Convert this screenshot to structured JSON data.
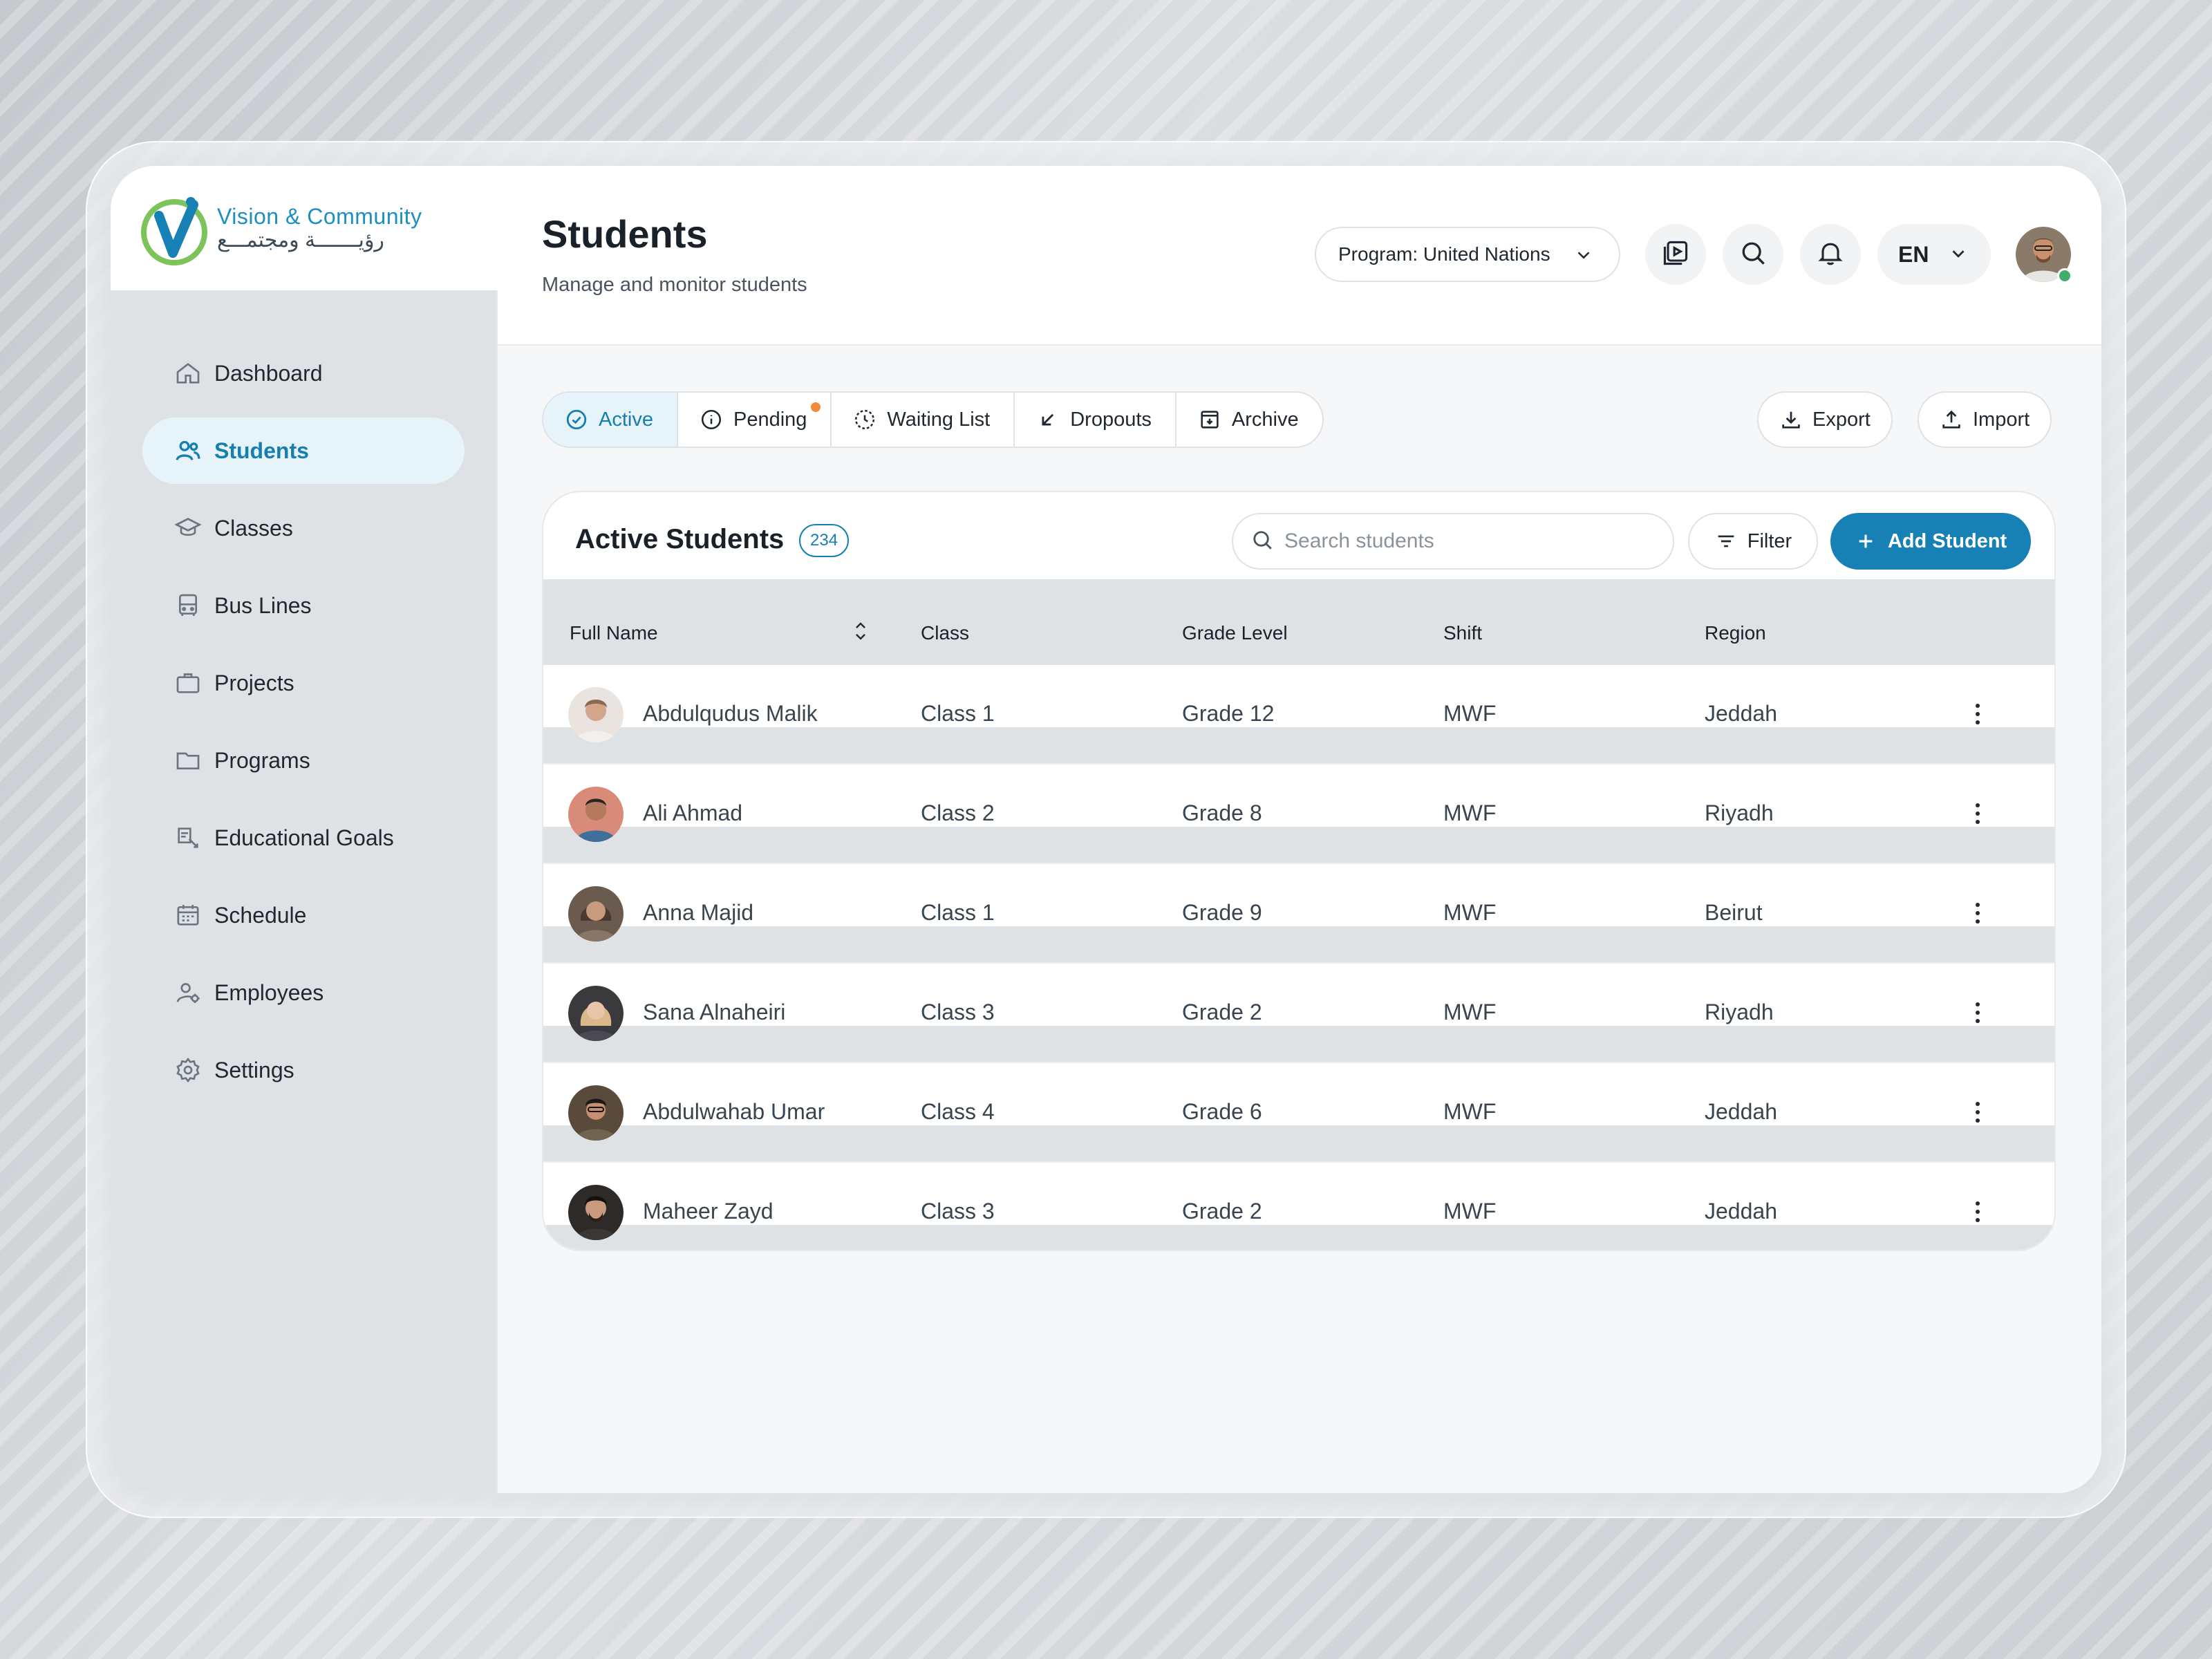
{
  "brand": {
    "name_en": "Vision & Community",
    "name_ar": "رؤيـــــــة ومجتمـــع",
    "accent": "#1780b5",
    "accent_soft": "#e6f4f9",
    "logo_green": "#7cc35a"
  },
  "sidebar": {
    "items": [
      {
        "label": "Dashboard",
        "icon": "home-icon",
        "active": false
      },
      {
        "label": "Students",
        "icon": "users-icon",
        "active": true
      },
      {
        "label": "Classes",
        "icon": "graduation-cap-icon",
        "active": false
      },
      {
        "label": "Bus Lines",
        "icon": "bus-icon",
        "active": false
      },
      {
        "label": "Projects",
        "icon": "briefcase-icon",
        "active": false
      },
      {
        "label": "Programs",
        "icon": "folder-icon",
        "active": false
      },
      {
        "label": "Educational Goals",
        "icon": "goal-icon",
        "active": false
      },
      {
        "label": "Schedule",
        "icon": "calendar-icon",
        "active": false
      },
      {
        "label": "Employees",
        "icon": "employee-icon",
        "active": false
      },
      {
        "label": "Settings",
        "icon": "gear-icon",
        "active": false
      }
    ]
  },
  "header": {
    "title": "Students",
    "subtitle": "Manage and monitor students",
    "program_select": "Program: United Nations",
    "language": "EN"
  },
  "tabs": [
    {
      "label": "Active",
      "icon": "check-circle-icon",
      "active": true
    },
    {
      "label": "Pending",
      "icon": "info-icon",
      "active": false,
      "notification": true
    },
    {
      "label": "Waiting List",
      "icon": "clock-dashed-icon",
      "active": false
    },
    {
      "label": "Dropouts",
      "icon": "arrow-down-left-icon",
      "active": false
    },
    {
      "label": "Archive",
      "icon": "archive-icon",
      "active": false
    }
  ],
  "actions": {
    "export_label": "Export",
    "import_label": "Import"
  },
  "table_card": {
    "title": "Active Students",
    "count": "234",
    "search_placeholder": "Search students",
    "filter_label": "Filter",
    "add_label": "Add Student",
    "columns": [
      "Full Name",
      "Class",
      "Grade Level",
      "Shift",
      "Region"
    ],
    "rows": [
      {
        "name": "Abdulqudus Malik",
        "class": "Class 1",
        "grade": "Grade 12",
        "shift": "MWF",
        "region": "Jeddah",
        "avatar_color": "#c9b8aa"
      },
      {
        "name": "Ali Ahmad",
        "class": "Class 2",
        "grade": "Grade 8",
        "shift": "MWF",
        "region": "Riyadh",
        "avatar_color": "#d98b7a"
      },
      {
        "name": "Anna Majid",
        "class": "Class 1",
        "grade": "Grade 9",
        "shift": "MWF",
        "region": "Beirut",
        "avatar_color": "#6b5a4e"
      },
      {
        "name": "Sana Alnaheiri",
        "class": "Class 3",
        "grade": "Grade 2",
        "shift": "MWF",
        "region": "Riyadh",
        "avatar_color": "#b89a78"
      },
      {
        "name": "Abdulwahab Umar",
        "class": "Class 4",
        "grade": "Grade 6",
        "shift": "MWF",
        "region": "Jeddah",
        "avatar_color": "#5a4a3c"
      },
      {
        "name": "Maheer Zayd",
        "class": "Class 3",
        "grade": "Grade 2",
        "shift": "MWF",
        "region": "Jeddah",
        "avatar_color": "#2e2a28"
      }
    ]
  }
}
